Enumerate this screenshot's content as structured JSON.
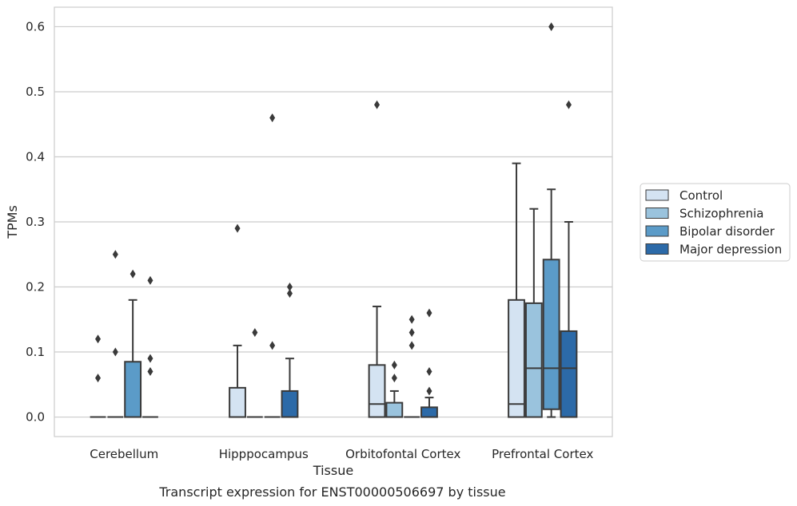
{
  "chart_data": {
    "type": "box",
    "xlabel": "Tissue",
    "ylabel": "TPMs",
    "caption": "Transcript expression for ENST00000506697 by tissue",
    "ylim": [
      -0.03,
      0.63
    ],
    "yticks": [
      0.0,
      0.1,
      0.2,
      0.3,
      0.4,
      0.5,
      0.6
    ],
    "ytick_labels": [
      "0.0",
      "0.1",
      "0.2",
      "0.3",
      "0.4",
      "0.5",
      "0.6"
    ],
    "grid": "horizontal",
    "legend_position": "right",
    "categories": [
      "Cerebellum",
      "Hipppocampus",
      "Orbitofontal Cortex",
      "Prefrontal Cortex"
    ],
    "series": [
      {
        "name": "Control",
        "color": "#d4e3f2",
        "boxes": [
          {
            "q1": 0,
            "median": 0,
            "q3": 0,
            "whisker_low": 0,
            "whisker_high": 0,
            "outliers": [
              0.06,
              0.12
            ]
          },
          {
            "q1": 0,
            "median": 0,
            "q3": 0.045,
            "whisker_low": 0,
            "whisker_high": 0.11,
            "outliers": [
              0.29
            ]
          },
          {
            "q1": 0,
            "median": 0.02,
            "q3": 0.08,
            "whisker_low": 0,
            "whisker_high": 0.17,
            "outliers": [
              0.48
            ]
          },
          {
            "q1": 0,
            "median": 0.02,
            "q3": 0.18,
            "whisker_low": 0,
            "whisker_high": 0.39,
            "outliers": []
          }
        ]
      },
      {
        "name": "Schizophrenia",
        "color": "#9ac3dd",
        "boxes": [
          {
            "q1": 0,
            "median": 0,
            "q3": 0,
            "whisker_low": 0,
            "whisker_high": 0,
            "outliers": [
              0.1,
              0.25
            ]
          },
          {
            "q1": 0,
            "median": 0,
            "q3": 0,
            "whisker_low": 0,
            "whisker_high": 0,
            "outliers": [
              0.13
            ]
          },
          {
            "q1": 0,
            "median": 0,
            "q3": 0.022,
            "whisker_low": 0,
            "whisker_high": 0.04,
            "outliers": [
              0.06,
              0.08
            ]
          },
          {
            "q1": 0,
            "median": 0.075,
            "q3": 0.175,
            "whisker_low": 0,
            "whisker_high": 0.32,
            "outliers": []
          }
        ]
      },
      {
        "name": "Bipolar disorder",
        "color": "#5b9bc8",
        "boxes": [
          {
            "q1": 0,
            "median": 0,
            "q3": 0.085,
            "whisker_low": 0,
            "whisker_high": 0.18,
            "outliers": [
              0.22
            ]
          },
          {
            "q1": 0,
            "median": 0,
            "q3": 0,
            "whisker_low": 0,
            "whisker_high": 0,
            "outliers": [
              0.11,
              0.46
            ]
          },
          {
            "q1": 0,
            "median": 0,
            "q3": 0,
            "whisker_low": 0,
            "whisker_high": 0,
            "outliers": [
              0.11,
              0.13,
              0.15
            ]
          },
          {
            "q1": 0.012,
            "median": 0.075,
            "q3": 0.242,
            "whisker_low": 0,
            "whisker_high": 0.35,
            "outliers": [
              0.6
            ]
          }
        ]
      },
      {
        "name": "Major depression",
        "color": "#2c6aa8",
        "boxes": [
          {
            "q1": 0,
            "median": 0,
            "q3": 0,
            "whisker_low": 0,
            "whisker_high": 0,
            "outliers": [
              0.07,
              0.09,
              0.21
            ]
          },
          {
            "q1": 0,
            "median": 0,
            "q3": 0.04,
            "whisker_low": 0,
            "whisker_high": 0.09,
            "outliers": [
              0.19,
              0.2
            ]
          },
          {
            "q1": 0,
            "median": 0,
            "q3": 0.015,
            "whisker_low": 0,
            "whisker_high": 0.03,
            "outliers": [
              0.04,
              0.07,
              0.16
            ]
          },
          {
            "q1": 0,
            "median": 0.075,
            "q3": 0.132,
            "whisker_low": 0,
            "whisker_high": 0.3,
            "outliers": [
              0.48
            ]
          }
        ]
      }
    ]
  }
}
